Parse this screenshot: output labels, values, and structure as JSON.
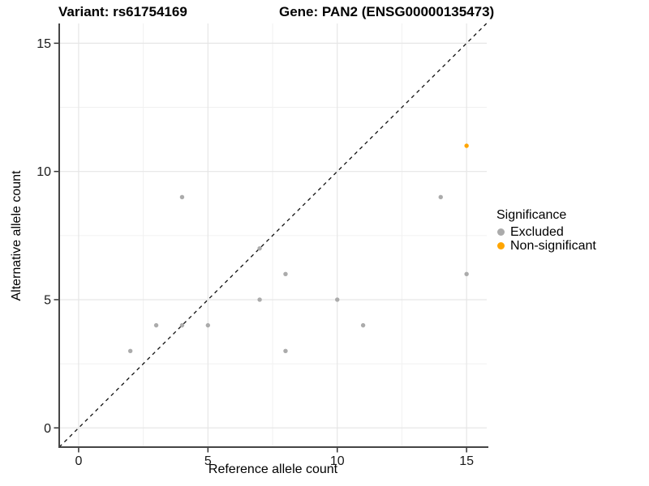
{
  "header": {
    "variant_title": "Variant: rs61754169",
    "gene_title": "Gene: PAN2 (ENSG00000135473)"
  },
  "chart_data": {
    "type": "scatter",
    "xlabel": "Reference allele count",
    "ylabel": "Alternative allele count",
    "xlim": [
      -0.75,
      15.78
    ],
    "ylim": [
      -0.75,
      15.77
    ],
    "x_ticks": [
      0,
      5,
      10,
      15
    ],
    "y_ticks": [
      0,
      5,
      10,
      15
    ],
    "x_minor_ticks": [
      2.5,
      7.5,
      12.5
    ],
    "y_minor_ticks": [
      2.5,
      7.5,
      12.5
    ],
    "grid": true,
    "identity_line": {
      "style": "dashed",
      "from": [
        -0.75,
        -0.75
      ],
      "to": [
        15.77,
        15.77
      ],
      "color": "#111111"
    },
    "series": [
      {
        "name": "Excluded",
        "color": "#ABABAB",
        "points": [
          [
            2,
            3
          ],
          [
            3,
            4
          ],
          [
            4,
            4
          ],
          [
            4,
            9
          ],
          [
            5,
            4
          ],
          [
            7,
            5
          ],
          [
            7,
            7
          ],
          [
            8,
            3
          ],
          [
            8,
            6
          ],
          [
            10,
            5
          ],
          [
            11,
            4
          ],
          [
            14,
            9
          ],
          [
            15,
            6
          ]
        ]
      },
      {
        "name": "Non-significant",
        "color": "#FFA500",
        "points": [
          [
            15,
            11
          ]
        ]
      }
    ],
    "legend": {
      "title": "Significance",
      "position": "right"
    },
    "colors": {
      "major_grid": "#E6E6E6",
      "minor_grid": "#F1F1F1",
      "axis_line": "#454545",
      "tick_mark": "#333333",
      "tick_label": "#1A1A1A"
    }
  }
}
